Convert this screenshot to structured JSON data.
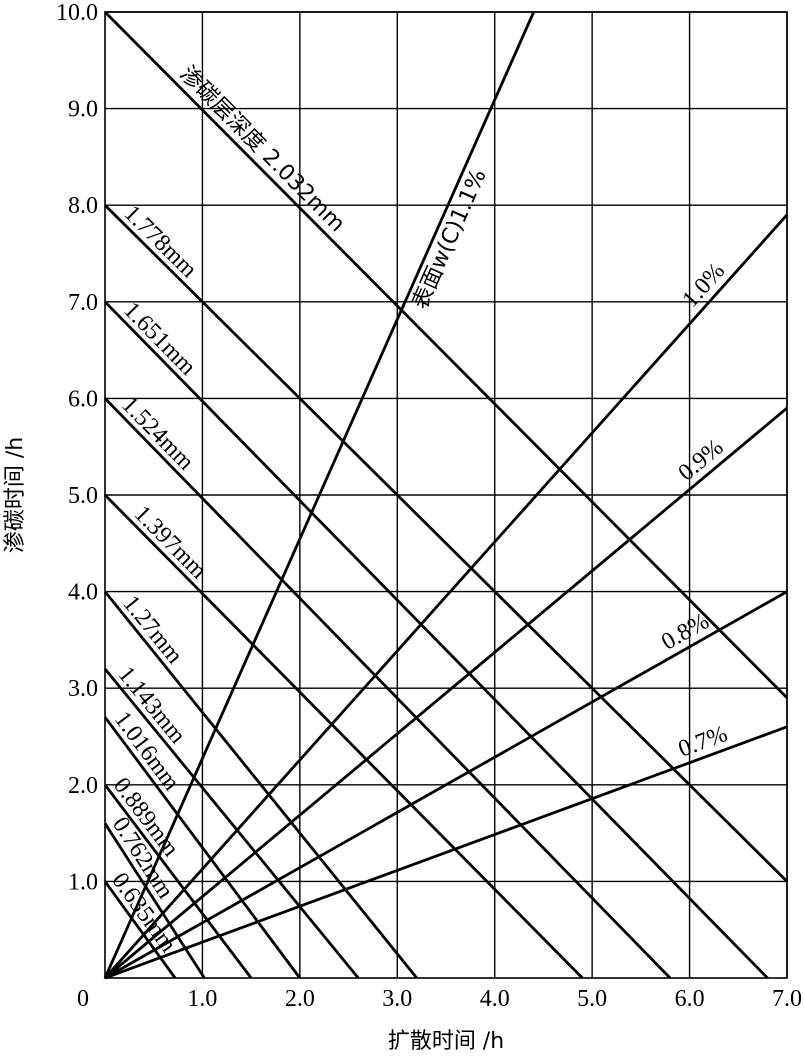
{
  "chart_data": {
    "type": "line",
    "xlabel": "扩散时间 /h",
    "ylabel": "渗碳时间 /h",
    "xlim": [
      0,
      7.0
    ],
    "ylim": [
      0,
      10.0
    ],
    "x_ticks": [
      "0",
      "1.0",
      "2.0",
      "3.0",
      "4.0",
      "5.0",
      "6.0",
      "7.0"
    ],
    "y_ticks": [
      "1.0",
      "2.0",
      "3.0",
      "4.0",
      "5.0",
      "6.0",
      "7.0",
      "8.0",
      "9.0",
      "10.0"
    ],
    "grid": true,
    "case_depth_series": [
      {
        "name": "0.635mm",
        "x": [
          0,
          0.72
        ],
        "y": [
          1.0,
          0
        ]
      },
      {
        "name": "0.762mm",
        "x": [
          0,
          1.02
        ],
        "y": [
          1.6,
          0
        ]
      },
      {
        "name": "0.889mm",
        "x": [
          0,
          1.5
        ],
        "y": [
          2.0,
          0
        ]
      },
      {
        "name": "1.016mm",
        "x": [
          0,
          2.0
        ],
        "y": [
          2.7,
          0
        ]
      },
      {
        "name": "1.143mm",
        "x": [
          0,
          2.6
        ],
        "y": [
          3.2,
          0
        ]
      },
      {
        "name": "1.27mm",
        "x": [
          0,
          3.2
        ],
        "y": [
          4.0,
          0
        ]
      },
      {
        "name": "1.397mm",
        "x": [
          0,
          4.9
        ],
        "y": [
          5.0,
          0
        ]
      },
      {
        "name": "1.524mm",
        "x": [
          0,
          5.8
        ],
        "y": [
          6.0,
          0
        ]
      },
      {
        "name": "1.651mm",
        "x": [
          0,
          6.8
        ],
        "y": [
          7.0,
          0
        ]
      },
      {
        "name": "1.778mm",
        "x": [
          0,
          7.0
        ],
        "y": [
          8.0,
          1.0
        ]
      },
      {
        "name": "渗碳层深度 2.032mm",
        "x": [
          0,
          7.0
        ],
        "y": [
          10.0,
          2.9
        ]
      }
    ],
    "surface_carbon_series": [
      {
        "name": "表面w(C)1.1%",
        "x": [
          0,
          4.4
        ],
        "y": [
          0,
          10.0
        ]
      },
      {
        "name": "1.0%",
        "x": [
          0,
          7.0
        ],
        "y": [
          0,
          7.9
        ]
      },
      {
        "name": "0.9%",
        "x": [
          0,
          7.0
        ],
        "y": [
          0,
          5.9
        ]
      },
      {
        "name": "0.8%",
        "x": [
          0,
          7.0
        ],
        "y": [
          0,
          4.0
        ]
      },
      {
        "name": "0.7%",
        "x": [
          0,
          7.0
        ],
        "y": [
          0,
          2.6
        ]
      }
    ]
  }
}
